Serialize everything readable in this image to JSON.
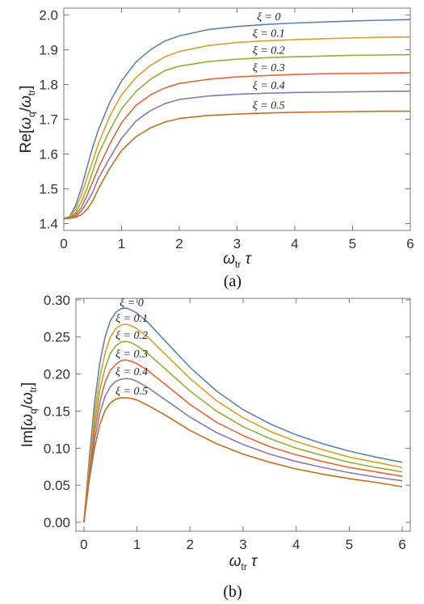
{
  "palette": [
    "#5E81B5",
    "#E19C24",
    "#8FB032",
    "#EB6235",
    "#8778B3",
    "#C56E1A"
  ],
  "chart_data": [
    {
      "type": "line",
      "panel": "a",
      "caption": "(a)",
      "xlabel": {
        "main": "ω",
        "sub": "tr",
        "tail": " τ"
      },
      "ylabel": {
        "pre": "Re[",
        "num": "ω",
        "numsub": "q",
        "slash": "/",
        "den": "ω",
        "densub": "tr",
        "post": "]"
      },
      "xlim": [
        0,
        6
      ],
      "ylim": [
        1.38,
        2.02
      ],
      "xticks": [
        "0",
        "1",
        "2",
        "3",
        "4",
        "5",
        "6"
      ],
      "yticks": [
        "1.4",
        "1.5",
        "1.6",
        "1.7",
        "1.8",
        "1.9",
        "2.0"
      ],
      "x": [
        0,
        0.1,
        0.2,
        0.3,
        0.4,
        0.5,
        0.6,
        0.8,
        1.0,
        1.25,
        1.5,
        1.75,
        2.0,
        2.5,
        3.0,
        3.5,
        4.0,
        4.5,
        5.0,
        5.5,
        6.0
      ],
      "series": [
        {
          "label": "ξ = 0",
          "values": [
            1.414,
            1.42,
            1.45,
            1.5,
            1.56,
            1.62,
            1.67,
            1.75,
            1.81,
            1.865,
            1.9,
            1.925,
            1.94,
            1.958,
            1.967,
            1.973,
            1.977,
            1.98,
            1.983,
            1.985,
            1.987
          ]
        },
        {
          "label": "ξ = 0.1",
          "values": [
            1.414,
            1.419,
            1.44,
            1.48,
            1.53,
            1.58,
            1.63,
            1.71,
            1.77,
            1.82,
            1.855,
            1.88,
            1.895,
            1.912,
            1.921,
            1.926,
            1.929,
            1.932,
            1.934,
            1.936,
            1.937
          ]
        },
        {
          "label": "ξ = 0.2",
          "values": [
            1.414,
            1.418,
            1.43,
            1.46,
            1.5,
            1.55,
            1.6,
            1.67,
            1.73,
            1.78,
            1.815,
            1.84,
            1.853,
            1.866,
            1.873,
            1.877,
            1.88,
            1.882,
            1.884,
            1.885,
            1.886
          ]
        },
        {
          "label": "ξ = 0.3",
          "values": [
            1.414,
            1.417,
            1.425,
            1.445,
            1.48,
            1.52,
            1.56,
            1.63,
            1.69,
            1.74,
            1.77,
            1.79,
            1.803,
            1.815,
            1.822,
            1.826,
            1.829,
            1.831,
            1.832,
            1.833,
            1.834
          ]
        },
        {
          "label": "ξ = 0.4",
          "values": [
            1.414,
            1.416,
            1.42,
            1.435,
            1.46,
            1.49,
            1.53,
            1.59,
            1.645,
            1.695,
            1.725,
            1.745,
            1.757,
            1.767,
            1.772,
            1.775,
            1.777,
            1.778,
            1.779,
            1.78,
            1.781
          ]
        },
        {
          "label": "ξ = 0.5",
          "values": [
            1.414,
            1.415,
            1.418,
            1.425,
            1.44,
            1.465,
            1.5,
            1.56,
            1.61,
            1.65,
            1.675,
            1.692,
            1.702,
            1.711,
            1.715,
            1.718,
            1.72,
            1.721,
            1.722,
            1.723,
            1.723
          ]
        }
      ]
    },
    {
      "type": "line",
      "panel": "b",
      "caption": "(b)",
      "xlabel": {
        "main": "ω",
        "sub": "tr",
        "tail": " τ"
      },
      "ylabel": {
        "pre": "Im[",
        "num": "ω",
        "numsub": "q",
        "slash": "/",
        "den": "ω",
        "densub": "tr",
        "post": "]"
      },
      "xlim": [
        -0.15,
        6.15
      ],
      "ylim": [
        -0.012,
        0.302
      ],
      "xticks": [
        "0",
        "1",
        "2",
        "3",
        "4",
        "5",
        "6"
      ],
      "yticks": [
        "0.00",
        "0.05",
        "0.10",
        "0.15",
        "0.20",
        "0.25",
        "0.30"
      ],
      "x": [
        0,
        0.1,
        0.2,
        0.3,
        0.4,
        0.5,
        0.6,
        0.7,
        0.8,
        0.9,
        1.0,
        1.2,
        1.5,
        2.0,
        2.5,
        3.0,
        3.5,
        4.0,
        4.5,
        5.0,
        5.5,
        6.0
      ],
      "series": [
        {
          "label": "ξ = 0",
          "values": [
            0,
            0.085,
            0.16,
            0.215,
            0.25,
            0.272,
            0.283,
            0.288,
            0.289,
            0.286,
            0.282,
            0.27,
            0.247,
            0.209,
            0.177,
            0.152,
            0.133,
            0.118,
            0.106,
            0.096,
            0.088,
            0.081
          ]
        },
        {
          "label": "ξ = 0.1",
          "values": [
            0,
            0.078,
            0.145,
            0.195,
            0.228,
            0.25,
            0.261,
            0.266,
            0.267,
            0.265,
            0.261,
            0.25,
            0.229,
            0.194,
            0.164,
            0.141,
            0.123,
            0.109,
            0.098,
            0.088,
            0.081,
            0.074
          ]
        },
        {
          "label": "ξ = 0.2",
          "values": [
            0,
            0.072,
            0.133,
            0.178,
            0.208,
            0.228,
            0.238,
            0.243,
            0.244,
            0.242,
            0.238,
            0.228,
            0.209,
            0.177,
            0.15,
            0.129,
            0.113,
            0.1,
            0.09,
            0.081,
            0.074,
            0.068
          ]
        },
        {
          "label": "ξ = 0.3",
          "values": [
            0,
            0.066,
            0.122,
            0.162,
            0.189,
            0.205,
            0.213,
            0.218,
            0.219,
            0.217,
            0.214,
            0.205,
            0.188,
            0.159,
            0.135,
            0.117,
            0.102,
            0.091,
            0.082,
            0.074,
            0.068,
            0.062
          ]
        },
        {
          "label": "ξ = 0.4",
          "values": [
            0,
            0.061,
            0.111,
            0.147,
            0.17,
            0.183,
            0.19,
            0.193,
            0.194,
            0.193,
            0.19,
            0.182,
            0.167,
            0.142,
            0.121,
            0.105,
            0.092,
            0.082,
            0.074,
            0.067,
            0.061,
            0.056
          ]
        },
        {
          "label": "ξ = 0.5",
          "values": [
            0,
            0.056,
            0.1,
            0.132,
            0.151,
            0.161,
            0.166,
            0.168,
            0.168,
            0.167,
            0.165,
            0.158,
            0.146,
            0.124,
            0.106,
            0.092,
            0.081,
            0.072,
            0.065,
            0.059,
            0.054,
            0.048
          ]
        }
      ]
    }
  ]
}
